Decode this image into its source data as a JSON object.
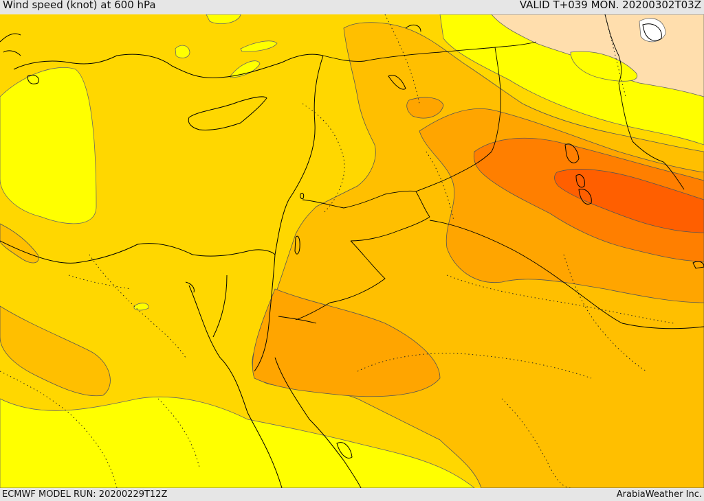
{
  "header": {
    "title": "Wind speed (knot) at 600 hPa",
    "valid": "VALID T+039 MON. 20200302T03Z"
  },
  "footer": {
    "model_run": "ECMWF MODEL RUN: 20200229T12Z",
    "credit": "ArabiaWeather Inc."
  },
  "colors": {
    "sea_light": "#ffff00",
    "base": "#ffd700",
    "band_1": "#ffbf00",
    "band_2": "#ffa500",
    "band_3": "#ff7f00",
    "band_4": "#ff5f00",
    "weak": "#ffdead",
    "calm": "#ffffff",
    "coast": "#000000",
    "contour": "#555555"
  }
}
